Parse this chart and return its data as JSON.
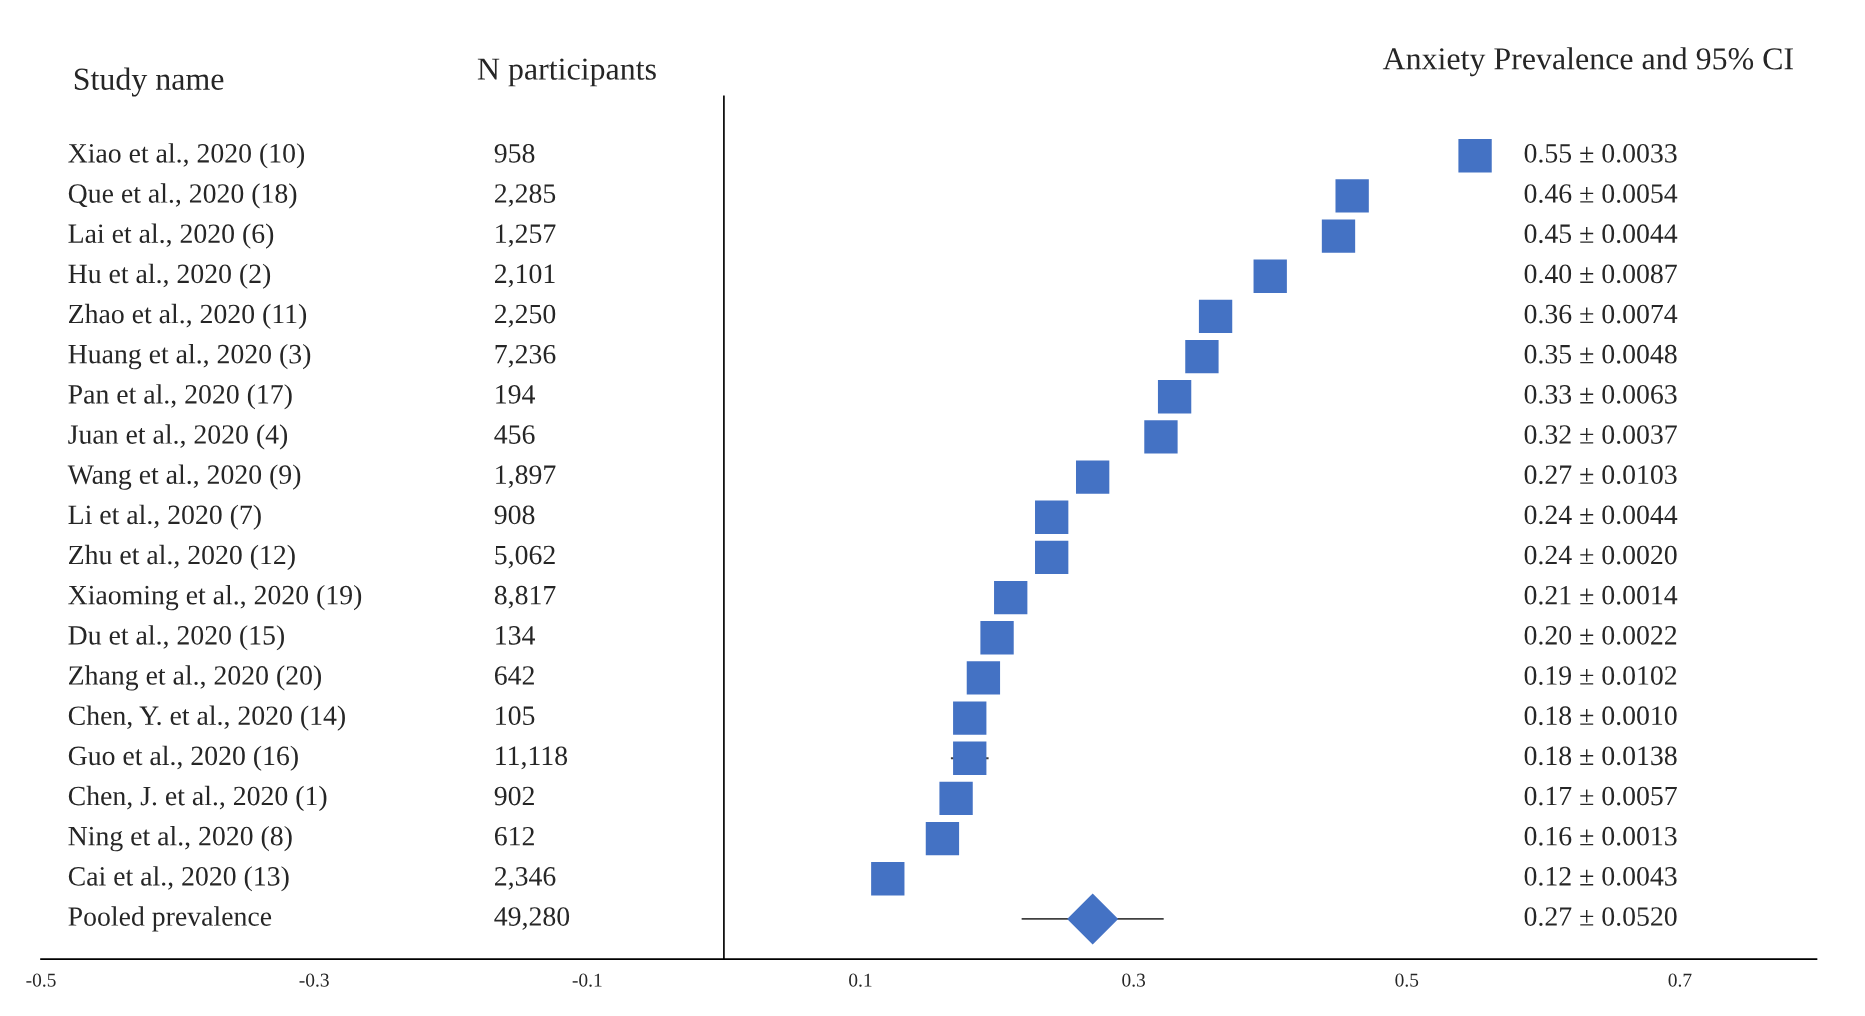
{
  "chart_data": {
    "type": "scatter",
    "orientation": "horizontal",
    "title": "Anxiety Prevalence and 95% CI",
    "ylabel": "Study name",
    "categories": [
      "Xiao et al., 2020 (10)",
      "Que et al., 2020 (18)",
      "Lai et al., 2020 (6)",
      "Hu et al., 2020 (2)",
      "Zhao et al., 2020 (11)",
      "Huang et al., 2020 (3)",
      "Pan et al., 2020 (17)",
      "Juan et al., 2020 (4)",
      "Wang et al., 2020 (9)",
      "Li et al., 2020 (7)",
      "Zhu et al., 2020 (12)",
      "Xiaoming et al., 2020 (19)",
      "Du et al., 2020 (15)",
      "Zhang et al., 2020 (20)",
      "Chen, Y. et al., 2020 (14)",
      "Guo et al., 2020 (16)",
      "Chen, J. et al., 2020 (1)",
      "Ning et al., 2020 (8)",
      "Cai et al., 2020 (13)",
      "Pooled prevalence"
    ],
    "series": [
      {
        "color": "#4472c4",
        "marker": "square",
        "values": [
          0.55,
          0.46,
          0.45,
          0.4,
          0.36,
          0.35,
          0.33,
          0.32,
          0.27,
          0.24,
          0.24,
          0.21,
          0.2,
          0.19,
          0.18,
          0.18,
          0.17,
          0.16,
          0.12,
          null
        ],
        "errors": [
          null,
          null,
          null,
          null,
          null,
          null,
          null,
          null,
          null,
          null,
          null,
          null,
          null,
          null,
          null,
          0.0138,
          null,
          null,
          null,
          null
        ]
      },
      {
        "color": "#4472c4",
        "marker": "diamond",
        "values": [
          null,
          null,
          null,
          null,
          null,
          null,
          null,
          null,
          null,
          null,
          null,
          null,
          null,
          null,
          null,
          null,
          null,
          null,
          null,
          0.27
        ],
        "errors": [
          null,
          null,
          null,
          null,
          null,
          null,
          null,
          null,
          null,
          null,
          null,
          null,
          null,
          null,
          null,
          null,
          null,
          null,
          null,
          0.052
        ]
      }
    ],
    "annotations": [
      "N participants",
      "958",
      "2,285",
      "1,257",
      "2,101",
      "2,250",
      "7,236",
      "194",
      "456",
      "1,897",
      "908",
      "5,062",
      "8,817",
      "134",
      "642",
      "105",
      "11,118",
      "902",
      "612",
      "2,346",
      "49,280",
      "0.55 ± 0.0033",
      "0.46 ± 0.0054",
      "0.45 ± 0.0044",
      "0.40 ± 0.0087",
      "0.36 ± 0.0074",
      "0.35 ± 0.0048",
      "0.33 ± 0.0063",
      "0.32 ± 0.0037",
      "0.27 ± 0.0103",
      "0.24 ± 0.0044",
      "0.24 ± 0.0020",
      "0.21 ± 0.0014",
      "0.20 ± 0.0022",
      "0.19 ± 0.0102",
      "0.18 ± 0.0010",
      "0.18 ± 0.0138",
      "0.17 ± 0.0057",
      "0.16 ± 0.0013",
      "0.12 ± 0.0043",
      "0.27 ± 0.0520"
    ],
    "xlim": [
      -0.5,
      0.8
    ],
    "xticks": [
      -0.5,
      -0.3,
      -0.1,
      0.1,
      0.3,
      0.5,
      0.7
    ],
    "ref_lines": [
      {
        "axis": "x",
        "value": 0,
        "color": "#000000"
      }
    ],
    "tick_labels": "x",
    "grid": false,
    "legend": false
  }
}
